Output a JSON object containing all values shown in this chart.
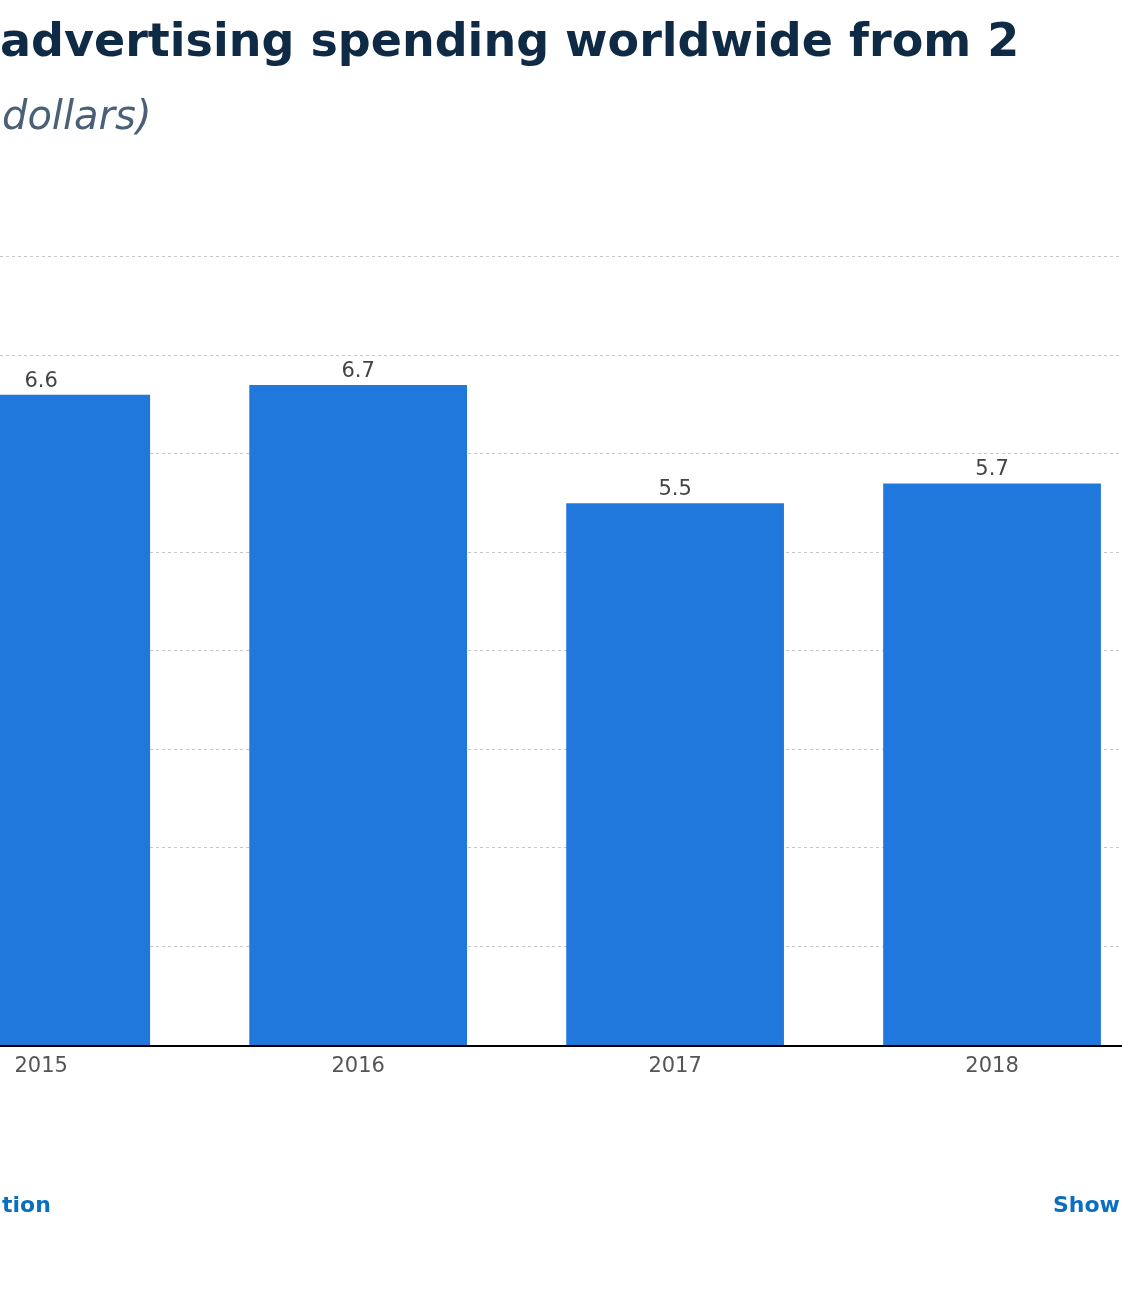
{
  "chart_data": {
    "type": "bar",
    "title": "advertising spending worldwide from 2",
    "subtitle": "dollars)",
    "categories": [
      "2015",
      "2016",
      "2017",
      "2018"
    ],
    "values": [
      6.6,
      6.7,
      5.5,
      5.7
    ],
    "color": "#2078dc",
    "yticks": [
      {
        "value": 1,
        "label": null
      },
      {
        "value": 2,
        "label": null
      },
      {
        "value": 3,
        "label": null
      },
      {
        "value": 4,
        "label": null
      },
      {
        "value": 5,
        "label": null
      },
      {
        "value": 6,
        "label": null
      },
      {
        "value": 7,
        "label": null
      },
      {
        "value": 8,
        "label": null
      }
    ],
    "tick_labels": "x",
    "grid": "y",
    "data_labels": true,
    "legend": false,
    "annotations": [
      "tion",
      "Show"
    ]
  }
}
